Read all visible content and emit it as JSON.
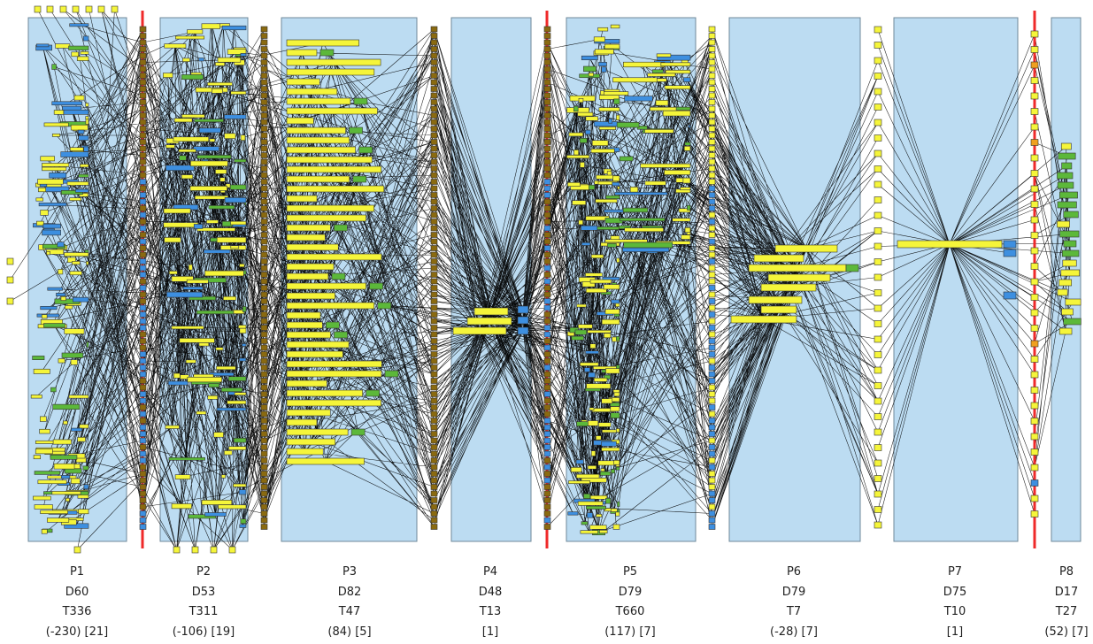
{
  "diagram": {
    "panels": [
      {
        "name": "P1",
        "d": "D60",
        "t": "T336",
        "extra": "(-230) [21]"
      },
      {
        "name": "P2",
        "d": "D53",
        "t": "T311",
        "extra": "(-106) [19]"
      },
      {
        "name": "P3",
        "d": "D82",
        "t": "T47",
        "extra": "(84) [5]"
      },
      {
        "name": "P4",
        "d": "D48",
        "t": "T13",
        "extra": "[1]"
      },
      {
        "name": "P5",
        "d": "D79",
        "t": "T660",
        "extra": "(117) [7]"
      },
      {
        "name": "P6",
        "d": "D79",
        "t": "T7",
        "extra": "(-28) [7]"
      },
      {
        "name": "P7",
        "d": "D75",
        "t": "T10",
        "extra": "[1]"
      },
      {
        "name": "P8",
        "d": "D17",
        "t": "T27",
        "extra": "(52) [7]"
      }
    ],
    "colors": {
      "panel_fill": "#bcdcf2",
      "panel_border": "#6f8899",
      "node_yellow": "#f5f53a",
      "node_green": "#5cb83a",
      "node_blue": "#3d8fe0",
      "node_orange": "#f0a020",
      "node_brown": "#8a6a10",
      "divider_red": "#ef2a2a",
      "edge": "#000000"
    }
  }
}
